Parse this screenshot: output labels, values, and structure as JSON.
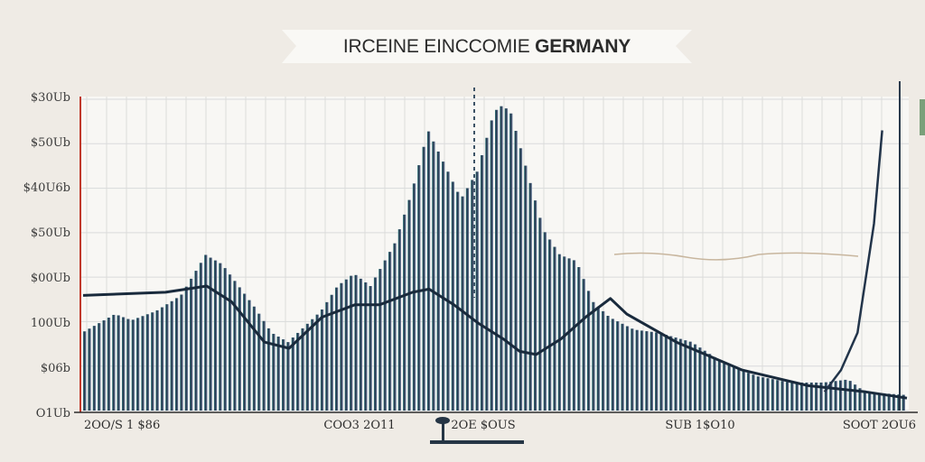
{
  "title": {
    "part1": "IRCEINE EINCCOMIE",
    "part2": "GERMANY"
  },
  "chart_data": {
    "type": "bar",
    "title": "IRCEINE EINCCOMIE GERMANY",
    "xlabel": "",
    "ylabel": "",
    "y_tick_labels": [
      "$30Ub",
      "$50Ub",
      "$40U6b",
      "$50Ub",
      "$00Ub",
      "100Ub",
      "$06b",
      "O1Ub"
    ],
    "x_tick_labels": [
      "2OO/S 1 $86",
      "COO3 2O11",
      "2OE $OUS",
      "SUB 1$O10",
      "SOOT 2OU6"
    ],
    "ylim": [
      0,
      100
    ],
    "grid": true,
    "colors": {
      "bar_start": "#3d8a8e",
      "bar_mid": "#1e2e44",
      "bar_end": "#7389a6",
      "trend_line": "#192a3c",
      "right_line": "#22344a",
      "accent_left": "#c0392b"
    },
    "bar_profile": [
      [
        0,
        25
      ],
      [
        4,
        31
      ],
      [
        6,
        29
      ],
      [
        9,
        32
      ],
      [
        12,
        37
      ],
      [
        15,
        50
      ],
      [
        17,
        47
      ],
      [
        19,
        40
      ],
      [
        21,
        33
      ],
      [
        23,
        25
      ],
      [
        25,
        22
      ],
      [
        27,
        27
      ],
      [
        29,
        32
      ],
      [
        31,
        40
      ],
      [
        33,
        44
      ],
      [
        35,
        40
      ],
      [
        38,
        54
      ],
      [
        40,
        70
      ],
      [
        42,
        90
      ],
      [
        44,
        79
      ],
      [
        46,
        68
      ],
      [
        48,
        77
      ],
      [
        50,
        96
      ],
      [
        51,
        98
      ],
      [
        52,
        96
      ],
      [
        54,
        77
      ],
      [
        56,
        58
      ],
      [
        58,
        50
      ],
      [
        60,
        48
      ],
      [
        62,
        35
      ],
      [
        64,
        30
      ],
      [
        67,
        26
      ],
      [
        70,
        25
      ],
      [
        74,
        22
      ],
      [
        78,
        15
      ],
      [
        82,
        11
      ],
      [
        86,
        9
      ],
      [
        90,
        9
      ],
      [
        93,
        10
      ],
      [
        95,
        6
      ],
      [
        100,
        5
      ]
    ],
    "trend_line": [
      [
        0,
        37
      ],
      [
        10,
        38
      ],
      [
        15,
        40
      ],
      [
        18,
        35
      ],
      [
        22,
        22
      ],
      [
        25,
        20
      ],
      [
        29,
        30
      ],
      [
        33,
        34
      ],
      [
        36,
        34
      ],
      [
        40,
        38
      ],
      [
        42,
        39
      ],
      [
        45,
        34
      ],
      [
        48,
        28
      ],
      [
        51,
        23
      ],
      [
        53,
        19
      ],
      [
        55,
        18
      ],
      [
        58,
        23
      ],
      [
        61,
        30
      ],
      [
        64,
        36
      ],
      [
        66,
        31
      ],
      [
        72,
        22
      ],
      [
        80,
        13
      ],
      [
        88,
        8
      ],
      [
        95,
        6
      ],
      [
        100,
        4
      ]
    ],
    "right_line": [
      [
        90,
        6
      ],
      [
        92,
        13
      ],
      [
        94,
        25
      ],
      [
        96,
        60
      ],
      [
        97,
        90
      ]
    ]
  }
}
